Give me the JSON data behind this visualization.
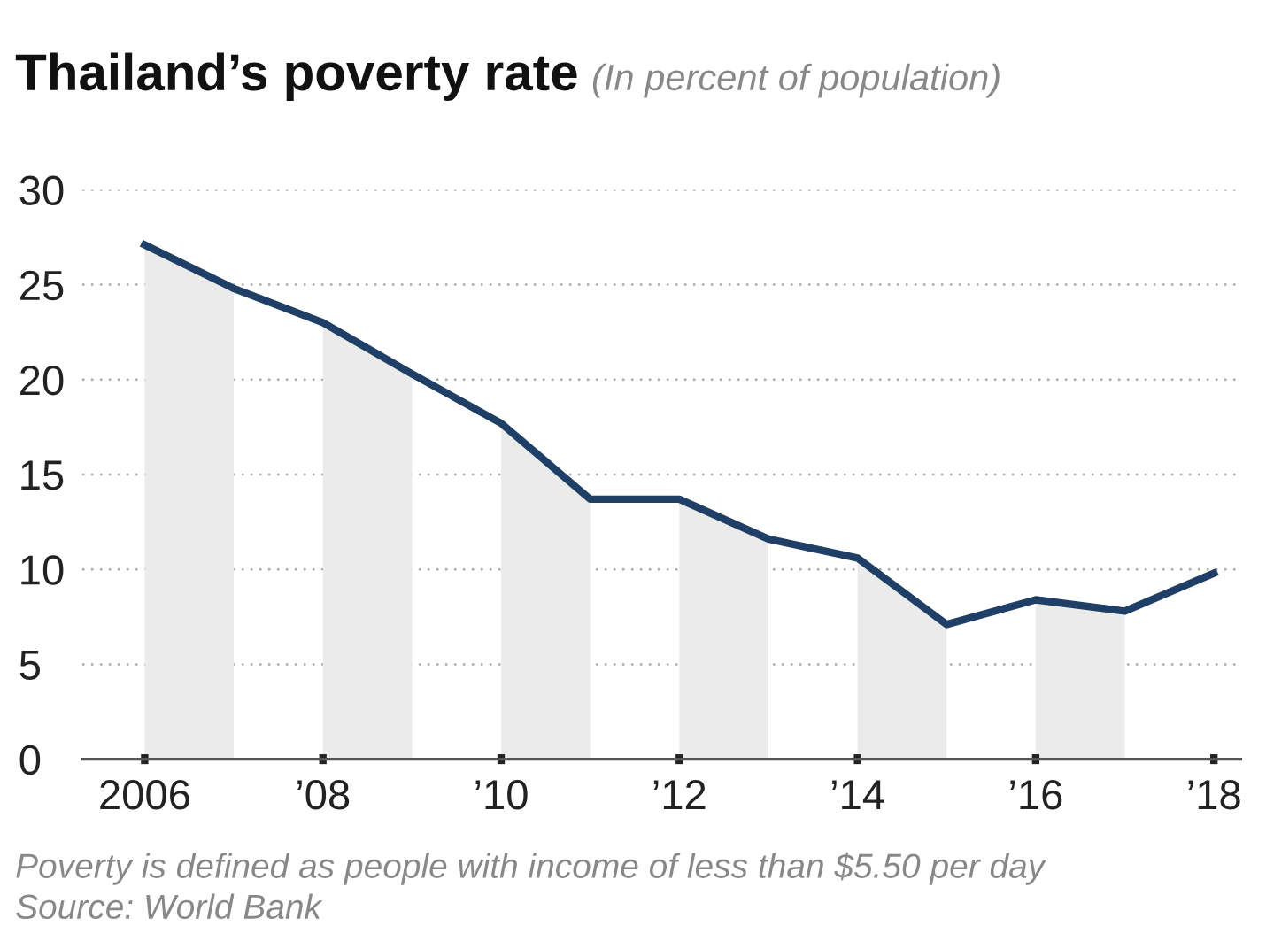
{
  "chart_data": {
    "type": "line",
    "title": "Thailand’s poverty rate",
    "subtitle": "(In percent of population)",
    "x": [
      2006,
      2007,
      2008,
      2009,
      2010,
      2011,
      2012,
      2013,
      2014,
      2015,
      2016,
      2017,
      2018
    ],
    "series": [
      {
        "color": "#1f3f66",
        "values": [
          27.1,
          24.8,
          23.0,
          20.3,
          17.7,
          13.7,
          13.7,
          11.6,
          10.6,
          7.1,
          8.4,
          7.8,
          9.8
        ]
      }
    ],
    "xlim": [
      2005.3,
      2018.3
    ],
    "xticks": [
      2006,
      {
        "value": 2008,
        "label": "’08"
      },
      {
        "value": 2010,
        "label": "’10"
      },
      {
        "value": 2012,
        "label": "’12"
      },
      {
        "value": 2014,
        "label": "’14"
      },
      {
        "value": 2016,
        "label": "’16"
      },
      {
        "value": 2018,
        "label": "’18"
      }
    ],
    "ylim": [
      0,
      30
    ],
    "yticks": [
      0,
      5,
      10,
      15,
      20,
      25,
      30
    ],
    "grid": "y",
    "marker": "none",
    "line_style": "solid",
    "legend": false,
    "bands": [
      {
        "axis": "x",
        "from": 2006,
        "to": 2007,
        "color": "#ebebeb"
      },
      {
        "axis": "x",
        "from": 2008,
        "to": 2009,
        "color": "#ebebeb"
      },
      {
        "axis": "x",
        "from": 2010,
        "to": 2011,
        "color": "#ebebeb"
      },
      {
        "axis": "x",
        "from": 2012,
        "to": 2013,
        "color": "#ebebeb"
      },
      {
        "axis": "x",
        "from": 2014,
        "to": 2015,
        "color": "#ebebeb"
      },
      {
        "axis": "x",
        "from": 2016,
        "to": 2017,
        "color": "#ebebeb"
      }
    ],
    "annotations": [
      "Poverty is defined as people with income of less than $5.50 per day",
      "Source: World Bank"
    ]
  }
}
